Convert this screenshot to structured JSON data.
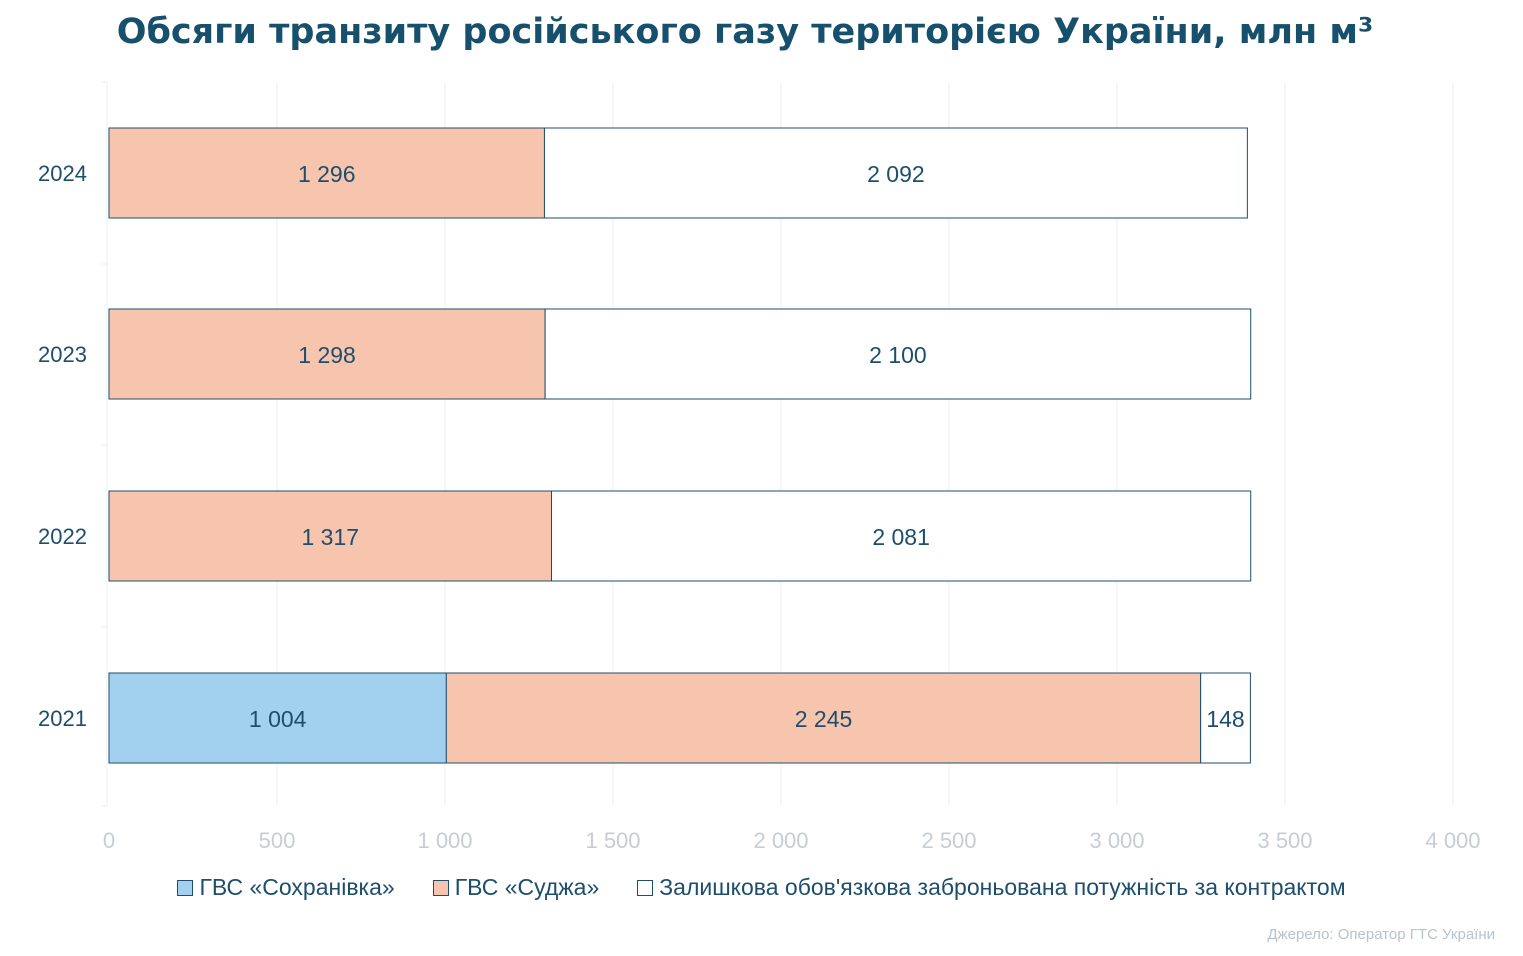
{
  "chart_data": {
    "type": "bar",
    "orientation": "horizontal",
    "stacked": true,
    "title": "Обсяги транзиту російського газу територією України, млн м³",
    "categories": [
      "2024",
      "2023",
      "2022",
      "2021"
    ],
    "series": [
      {
        "name": "ГВС «Сохранівка»",
        "color": "#a1d1ee",
        "values": [
          0,
          0,
          0,
          1004
        ],
        "labels": [
          "",
          "",
          "",
          "1 004"
        ]
      },
      {
        "name": "ГВС «Суджа»",
        "color": "#f7c5ae",
        "values": [
          1296,
          1298,
          1317,
          2245
        ],
        "labels": [
          "1 296",
          "1 298",
          "1 317",
          "2 245"
        ]
      },
      {
        "name": "Залишкова обов'язкова заброньована потужність за контрактом",
        "color": "#ffffff",
        "values": [
          2092,
          2100,
          2081,
          148
        ],
        "labels": [
          "2 092",
          "2 100",
          "2 081",
          "148"
        ]
      }
    ],
    "xlim": [
      0,
      4000
    ],
    "xticks": [
      0,
      500,
      1000,
      1500,
      2000,
      2500,
      3000,
      3500,
      4000
    ],
    "xtick_labels": [
      "0",
      "500",
      "1 000",
      "1 500",
      "2 000",
      "2 500",
      "3 000",
      "3 500",
      "4 000"
    ],
    "grid": true,
    "legend_position": "bottom"
  },
  "source": "Джерело: Оператор ГТС України",
  "colors": {
    "text": "#1d4e6b",
    "axis_text": "#c6cdd4",
    "grid": "#eceff2",
    "bar_border": "#1d4e6b"
  }
}
